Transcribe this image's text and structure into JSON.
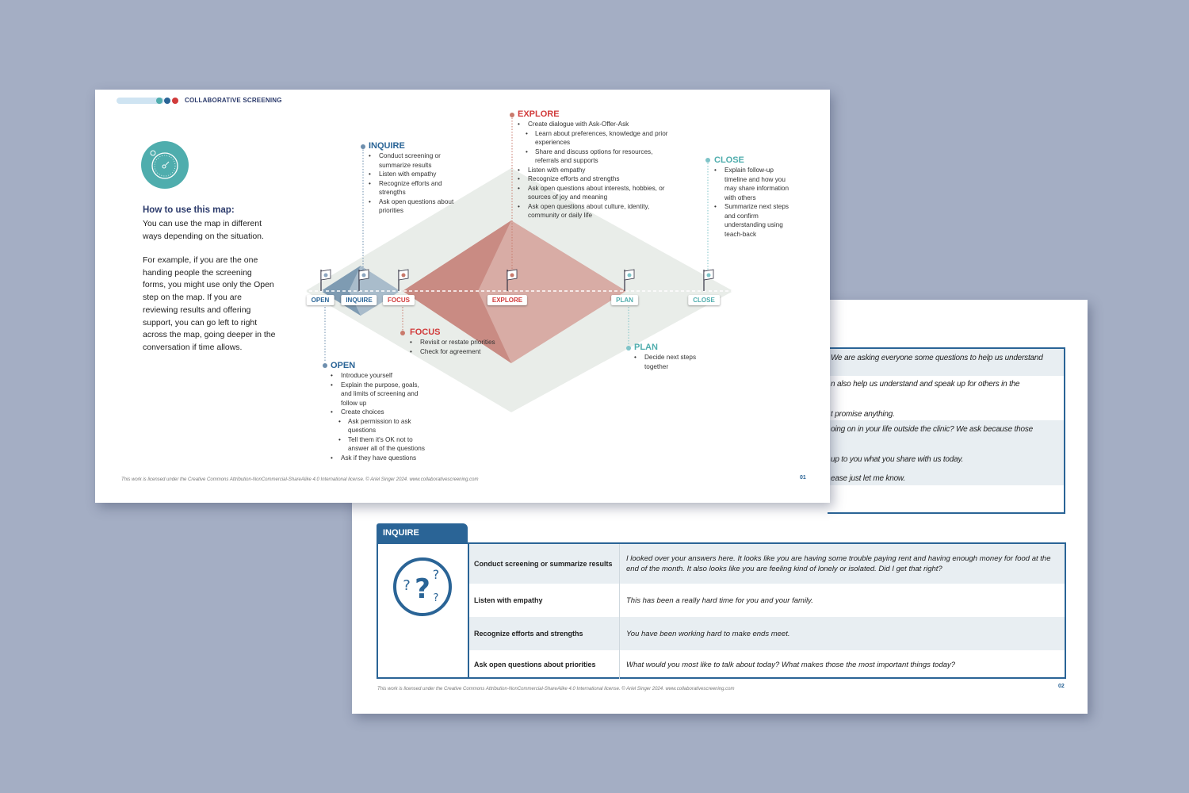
{
  "colors": {
    "background": "#a4aec4",
    "blue": "#2a6496",
    "red": "#d13b3b",
    "teal": "#4fadad",
    "slate": "#6e8fae",
    "light_teal": "#7fc4c8",
    "salmon": "#c97a6c"
  },
  "page1": {
    "header": "COLLABORATIVE SCREENING",
    "icon": "stopwatch-icon",
    "howto_title": "How to use this map:",
    "howto_text": "You can use the map in different ways depending on the situation.",
    "example_text": "For example, if you are the one handing people the screening forms, you might use only the Open step on the map. If you are reviewing results and offering support, you can go left to right across the map, going deeper in the conversation if time allows.",
    "steps": {
      "open": {
        "label": "OPEN",
        "title": "OPEN",
        "items": [
          "Introduce yourself",
          "Explain the purpose, goals, and limits of screening and follow up",
          "Create choices"
        ],
        "sub": [
          "Ask permission to ask questions",
          "Tell them it's OK not to answer all of the questions"
        ],
        "last": "Ask if they have questions"
      },
      "inquire": {
        "label": "INQUIRE",
        "title": "INQUIRE",
        "items": [
          "Conduct screening or summarize results",
          "Listen with empathy",
          "Recognize efforts and strengths",
          "Ask open questions about priorities"
        ]
      },
      "focus": {
        "label": "FOCUS",
        "title": "FOCUS",
        "items": [
          "Revisit or restate priorities",
          "Check for agreement"
        ]
      },
      "explore": {
        "label": "EXPLORE",
        "title": "EXPLORE",
        "first": "Create dialogue with Ask-Offer-Ask",
        "sub": [
          "Learn about preferences, knowledge and prior experiences",
          "Share and discuss options for resources, referrals and supports"
        ],
        "items": [
          "Listen with empathy",
          "Recognize efforts and strengths",
          "Ask open questions about interests, hobbies, or sources of joy and meaning",
          "Ask open questions about culture, identity, community or daily life"
        ]
      },
      "plan": {
        "label": "PLAN",
        "title": "PLAN",
        "items": [
          "Decide next steps together"
        ]
      },
      "close": {
        "label": "CLOSE",
        "title": "CLOSE",
        "items": [
          "Explain follow-up timeline and how you may share information with others",
          "Summarize next steps and confirm understanding using teach-back"
        ]
      }
    },
    "footer": "This work is licensed under the Creative Commons Attribution-NonCommercial-ShareAlike 4.0 International license.   © Ariel Singer 2024. www.collaborativescreening.com",
    "page_number": "01"
  },
  "page2": {
    "top_fragments": [
      "We are asking everyone some questions to help us understand",
      "n also help us understand and speak up for others in the",
      "t promise anything.",
      "oing on in your life outside the clinic? We ask because those",
      "up to you what you share with us today.",
      "ease just let me know."
    ],
    "section_tab": "INQUIRE",
    "icon": "question-marks-icon",
    "rows": [
      {
        "label": "Conduct screening or summarize results",
        "text": "I looked over your answers here. It looks like you are having some trouble paying rent and having enough money for food at the end of the month. It also looks like you are feeling kind of lonely or isolated. Did I get that right?"
      },
      {
        "label": "Listen with empathy",
        "text": "This has been a really hard time for you and your family."
      },
      {
        "label": "Recognize efforts and strengths",
        "text": "You have been working hard to make ends meet."
      },
      {
        "label": "Ask open questions about priorities",
        "text": "What would you most like to talk about today? What makes those the most important things today?"
      }
    ],
    "footer": "This work is licensed under the Creative Commons Attribution-NonCommercial-ShareAlike 4.0 International license.   © Ariel Singer 2024. www.collaborativescreening.com",
    "page_number": "02"
  }
}
